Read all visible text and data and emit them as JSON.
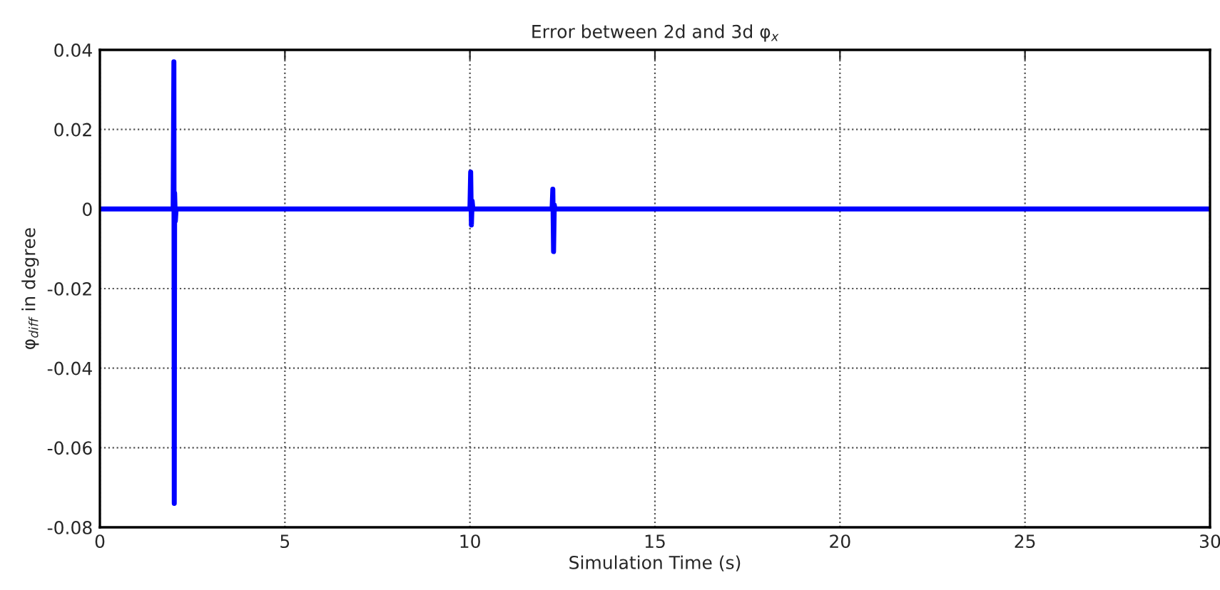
{
  "chart_data": {
    "type": "line",
    "title": "Error between 2d and 3d φ$_{x}$",
    "xlabel": "Simulation Time (s)",
    "ylabel": "φ$_{diff}$ in degree",
    "x": [
      0,
      1.98,
      2.0,
      2.01,
      2.02,
      2.04,
      2.06,
      10.0,
      10.02,
      10.04,
      10.06,
      10.08,
      12.22,
      12.24,
      12.26,
      12.28,
      12.3,
      30
    ],
    "series": [
      {
        "color": "#0000ff",
        "values": [
          0.0,
          0.0,
          0.037,
          -0.074,
          0.004,
          -0.003,
          0.0,
          0.0,
          0.0093,
          -0.004,
          0.002,
          0.0,
          0.0,
          0.005,
          -0.0107,
          0.001,
          0.0,
          0.0
        ]
      }
    ],
    "xlim": [
      0,
      30
    ],
    "ylim": [
      -0.08,
      0.04
    ],
    "xticks": [
      0,
      5,
      10,
      15,
      20,
      25,
      30
    ],
    "yticks": [
      -0.08,
      -0.06,
      -0.04,
      -0.02,
      0,
      0.02,
      0.04
    ],
    "grid": true,
    "line_style": "solid",
    "marker": "none"
  }
}
